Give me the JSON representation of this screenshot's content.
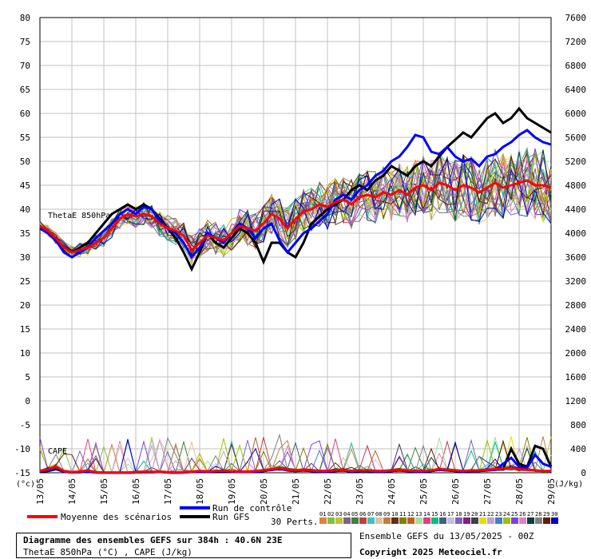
{
  "chart_data": {
    "type": "line",
    "title": "Diagramme des ensembles GEFS sur 384h : 40.6N 23E",
    "subtitle": "ThetaE 850hPa (°C) , CAPE (J/kg)",
    "xlabel": "",
    "ylabel_left": "(°c)",
    "ylabel_right": "(J/kg)",
    "ylim_left": [
      -15,
      80
    ],
    "ylim_right": [
      0,
      7600
    ],
    "left_ticks": [
      80,
      75,
      70,
      65,
      60,
      55,
      50,
      45,
      40,
      35,
      30,
      25,
      20,
      15,
      10,
      5,
      0,
      -5,
      -10,
      -15
    ],
    "right_ticks": [
      7600,
      7200,
      6800,
      6400,
      6000,
      5600,
      5200,
      4800,
      4400,
      4000,
      3600,
      3200,
      2800,
      2400,
      2000,
      1600,
      1200,
      800,
      400,
      0
    ],
    "dates": [
      "13/05",
      "14/05",
      "15/05",
      "16/05",
      "17/05",
      "18/05",
      "19/05",
      "20/05",
      "21/05",
      "22/05",
      "23/05",
      "24/05",
      "25/05",
      "26/05",
      "27/05",
      "28/05",
      "29/05"
    ],
    "annotations": {
      "thetae": "ThetaE 850hPa",
      "cape": "CAPE"
    },
    "x_hours_step": 6,
    "thetae_series": [
      {
        "name": "Moyenne des scénarios",
        "color": "#ff0000",
        "width": 3,
        "values": [
          36.5,
          35.5,
          34,
          32,
          31,
          31.5,
          32,
          33,
          34,
          36,
          38,
          39,
          38.5,
          39,
          38.5,
          37,
          36,
          35.5,
          34.5,
          31.5,
          33,
          34.5,
          34,
          33.5,
          35,
          36.5,
          36,
          35.5,
          37,
          39,
          38,
          36,
          38,
          39.5,
          40,
          41,
          40.5,
          41.5,
          42,
          41,
          42.5,
          43,
          42.5,
          43.5,
          43,
          44,
          43,
          44.5,
          45,
          44,
          45.5,
          45,
          44,
          45,
          44.5,
          43.5,
          44.5,
          45.5,
          44.5,
          45,
          45.5,
          46,
          45,
          45,
          44.5
        ]
      },
      {
        "name": "Run de contrôle",
        "color": "#0000ff",
        "width": 3,
        "values": [
          36,
          35,
          33.5,
          31,
          30,
          31,
          32,
          34,
          35.5,
          37,
          39,
          40,
          39,
          40.5,
          40,
          37.5,
          36,
          35,
          33,
          30,
          32,
          35,
          34,
          33,
          35,
          37,
          36,
          34,
          36,
          37,
          33.5,
          31,
          33,
          35,
          36,
          37.5,
          39,
          42,
          43,
          42,
          44,
          45,
          47,
          48,
          50,
          51,
          53,
          55.5,
          55,
          52,
          51.5,
          53,
          51,
          50,
          50.5,
          49,
          51,
          51.5,
          53,
          54,
          55.5,
          56.5,
          55,
          54,
          53.5
        ]
      },
      {
        "name": "Run GFS",
        "color": "#000000",
        "width": 3,
        "values": [
          36,
          35,
          34,
          32,
          31,
          32,
          33,
          35,
          37,
          39,
          40,
          41,
          40,
          41,
          40,
          38,
          36,
          34,
          31,
          27.5,
          31,
          35,
          33,
          32,
          34,
          36,
          35,
          33,
          29,
          33,
          33,
          31,
          30,
          33,
          37,
          38.5,
          40,
          41,
          42,
          44,
          45,
          44,
          46,
          47,
          49,
          48,
          47,
          49,
          50,
          49,
          51,
          53,
          54.5,
          56,
          55,
          57,
          59,
          60,
          58,
          59,
          61,
          59,
          58,
          57,
          56
        ]
      }
    ],
    "cape_series": [
      {
        "name": "Moyenne des scénarios",
        "color": "#ff0000",
        "width": 3,
        "values": [
          30,
          60,
          100,
          30,
          10,
          20,
          40,
          10,
          5,
          5,
          5,
          5,
          10,
          20,
          15,
          20,
          10,
          5,
          10,
          20,
          30,
          25,
          30,
          35,
          25,
          20,
          20,
          30,
          40,
          60,
          80,
          50,
          40,
          50,
          40,
          30,
          30,
          40,
          50,
          30,
          40,
          40,
          30,
          30,
          40,
          50,
          40,
          30,
          30,
          40,
          60,
          50,
          40,
          30,
          40,
          40,
          50,
          60,
          70,
          80,
          60,
          50,
          40,
          30,
          30
        ]
      },
      {
        "name": "Run de contrôle",
        "color": "#0000ff",
        "width": 3,
        "values": [
          20,
          40,
          80,
          20,
          5,
          10,
          20,
          5,
          0,
          0,
          0,
          0,
          5,
          10,
          10,
          15,
          5,
          0,
          5,
          15,
          20,
          20,
          25,
          30,
          20,
          15,
          15,
          20,
          30,
          50,
          70,
          40,
          30,
          40,
          30,
          20,
          20,
          30,
          40,
          20,
          30,
          30,
          20,
          20,
          30,
          40,
          30,
          20,
          20,
          30,
          50,
          40,
          30,
          20,
          30,
          30,
          40,
          50,
          150,
          250,
          100,
          80,
          300,
          150,
          100
        ]
      },
      {
        "name": "Run GFS",
        "color": "#000000",
        "width": 3,
        "values": [
          20,
          30,
          60,
          20,
          5,
          10,
          20,
          5,
          0,
          0,
          0,
          0,
          5,
          10,
          10,
          15,
          5,
          0,
          5,
          15,
          20,
          20,
          25,
          30,
          20,
          15,
          15,
          20,
          30,
          50,
          70,
          40,
          30,
          40,
          30,
          20,
          20,
          30,
          40,
          20,
          30,
          30,
          20,
          20,
          30,
          40,
          30,
          20,
          20,
          30,
          50,
          40,
          30,
          20,
          30,
          30,
          40,
          50,
          60,
          400,
          150,
          100,
          450,
          400,
          100
        ]
      }
    ],
    "perturbation_colors": [
      "#e08040",
      "#80c040",
      "#c0c040",
      "#806080",
      "#408040",
      "#c04040",
      "#40c0c0",
      "#e0c0a0",
      "#c08040",
      "#603010",
      "#808000",
      "#c06020",
      "#a0e0a0",
      "#e04080",
      "#00c080",
      "#406080",
      "#c0c0e0",
      "#8060c0",
      "#802080",
      "#404040",
      "#e0e000",
      "#c0a0e0",
      "#4080c0",
      "#a0c000",
      "#8040e0",
      "#e080c0",
      "#004040",
      "#808080",
      "#602000",
      "#0000c0"
    ]
  },
  "legend": {
    "mean_label": "Moyenne des scénarios",
    "mean_color": "#ff0000",
    "control_label": "Run de contrôle",
    "control_color": "#0000ff",
    "gfs_label": "Run GFS",
    "gfs_color": "#000000",
    "perts_label": "30 Perts.",
    "pert_numbers": [
      "01",
      "02",
      "03",
      "04",
      "05",
      "06",
      "07",
      "08",
      "09",
      "10",
      "11",
      "12",
      "13",
      "14",
      "15",
      "16",
      "17",
      "18",
      "19",
      "20",
      "21",
      "22",
      "23",
      "24",
      "25",
      "26",
      "27",
      "28",
      "29",
      "30"
    ]
  },
  "footer": {
    "title": "Diagramme des ensembles GEFS sur 384h : 40.6N 23E",
    "subtitle": "ThetaE 850hPa (°C) , CAPE (J/kg)",
    "run_info": "Ensemble GEFS du 13/05/2025 - 00Z",
    "copyright": "Copyright 2025 Meteociel.fr"
  }
}
